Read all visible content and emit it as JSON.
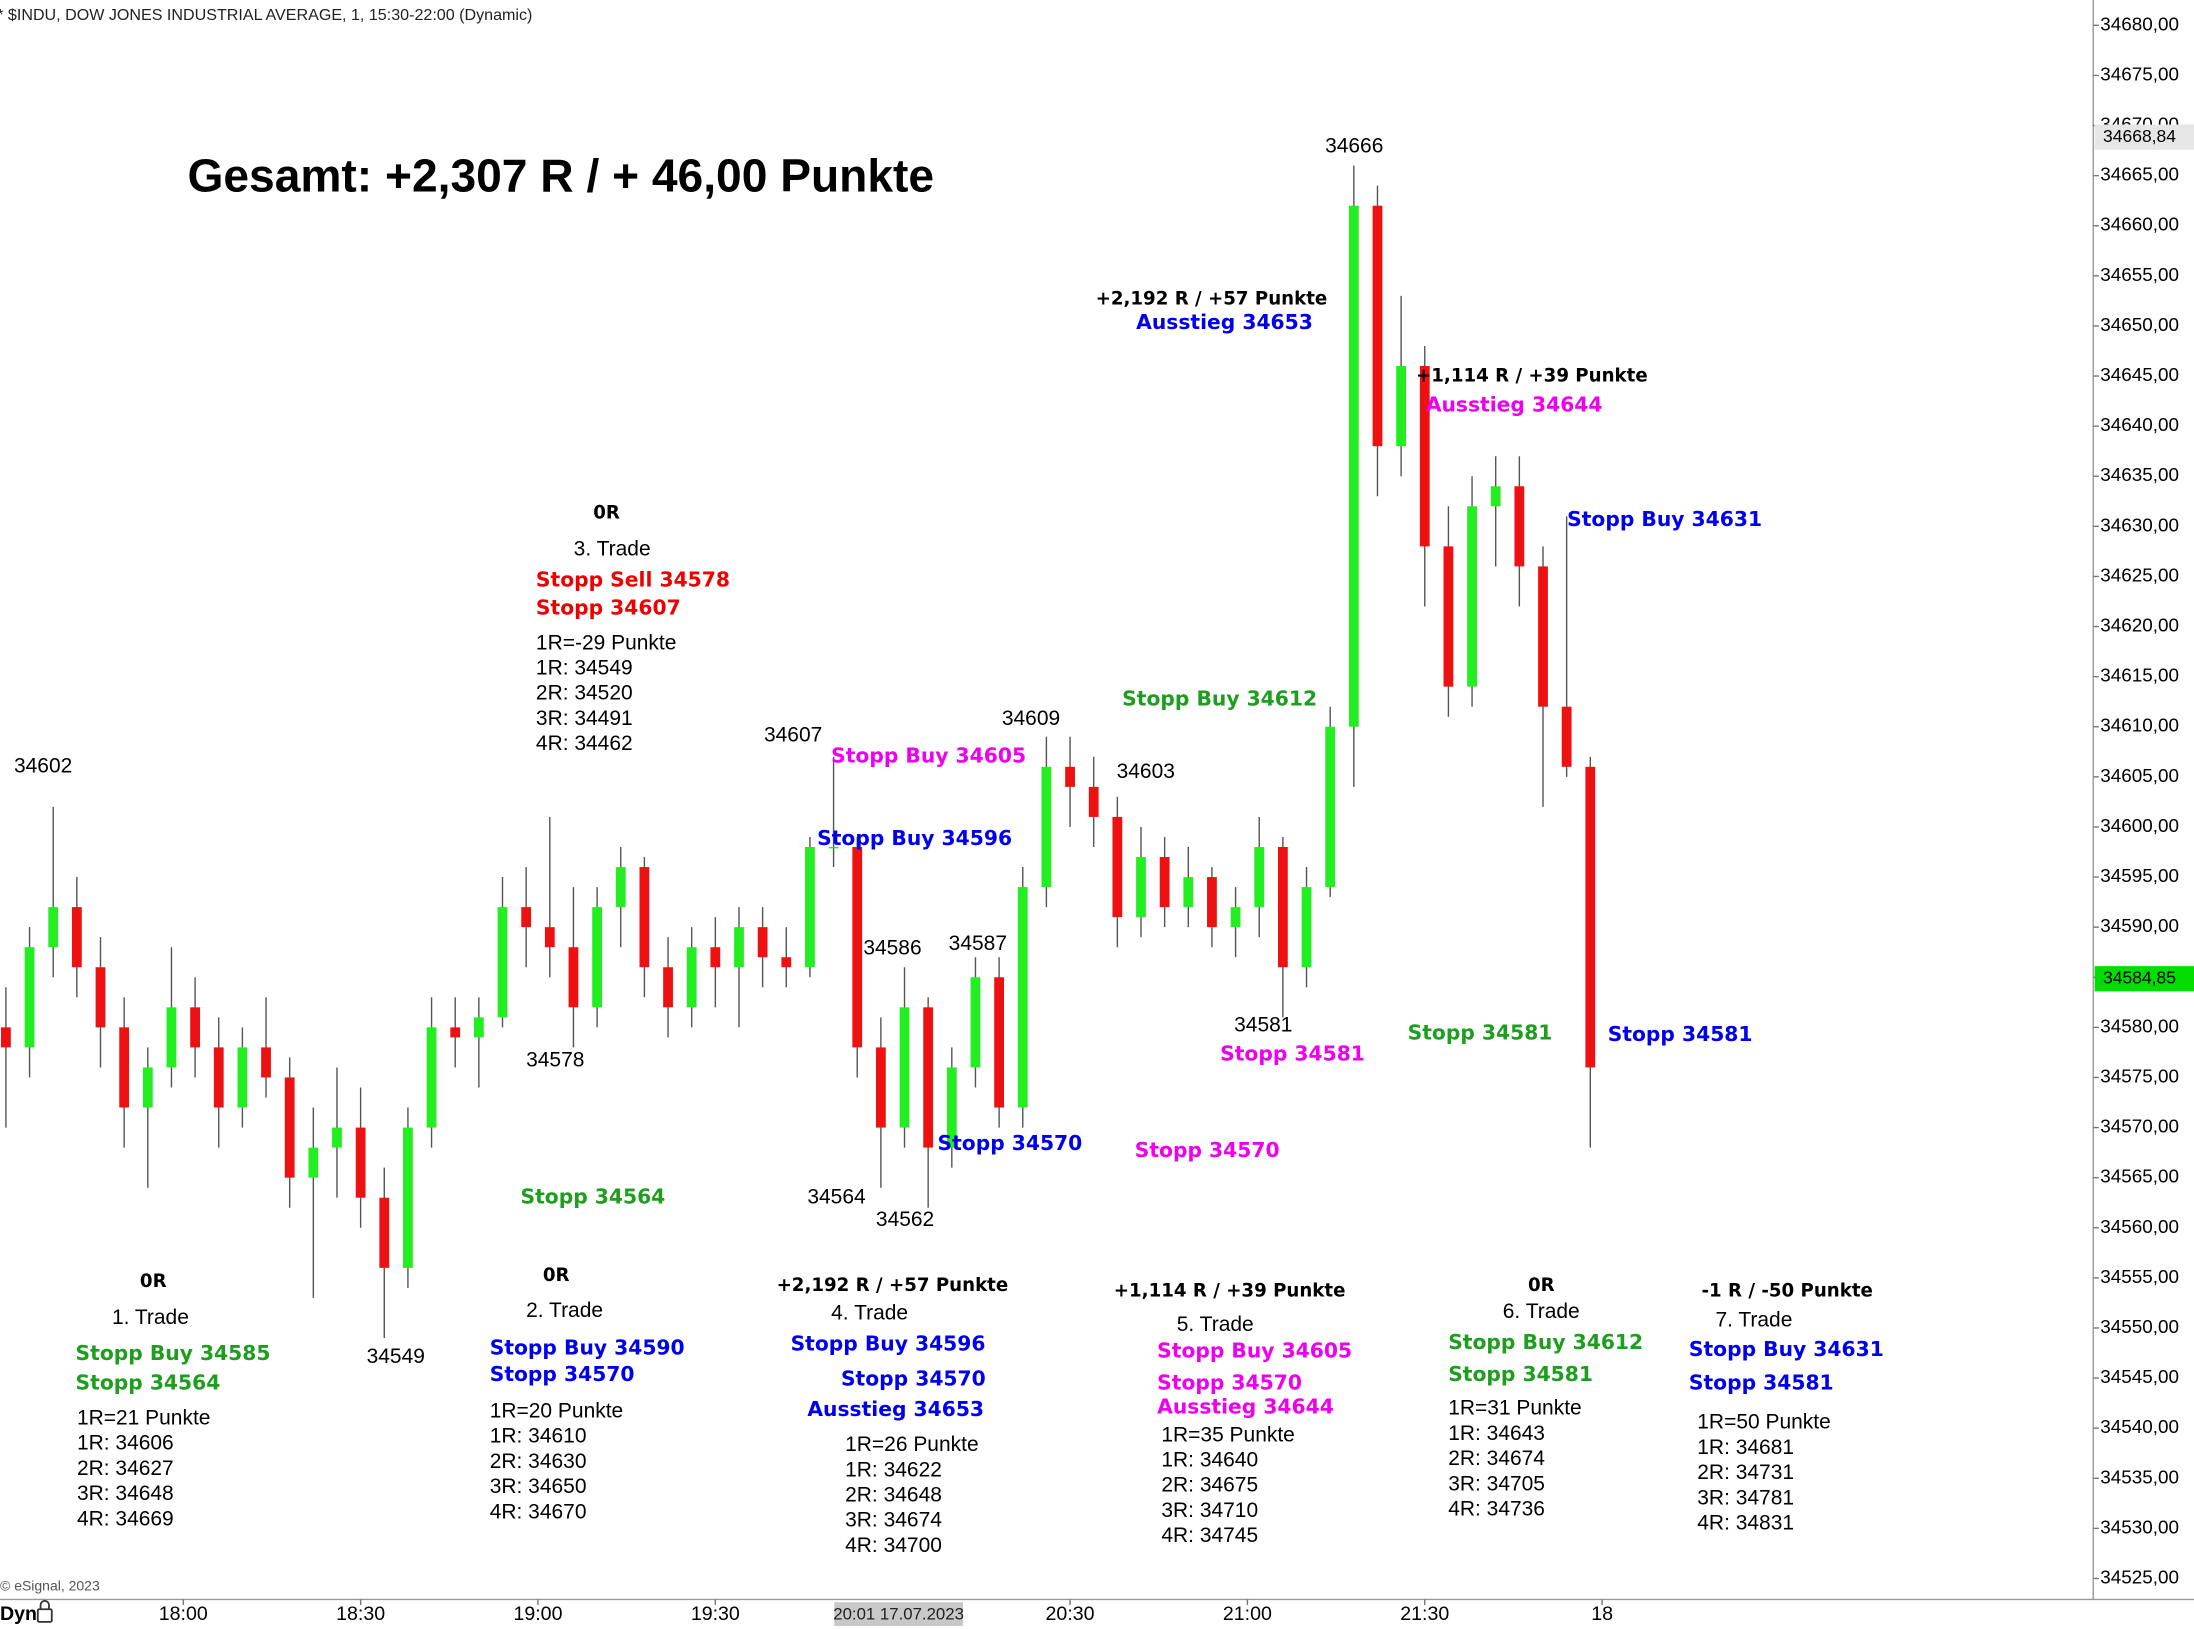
{
  "chart_data": {
    "type": "candlestick",
    "header": "* $INDU, DOW JONES INDUSTRIAL AVERAGE, 1, 15:30-22:00 (Dynamic)",
    "title": "Gesamt: +2,307 R / + 46,00 Punkte",
    "copyright": "© eSignal, 2023",
    "dyn_label": "Dyn",
    "up_color": "#22ee22",
    "down_color": "#ee1111",
    "grid": false,
    "x": [
      "17:30",
      "17:34",
      "17:38",
      "17:42",
      "17:46",
      "17:50",
      "17:54",
      "17:58",
      "18:02",
      "18:06",
      "18:10",
      "18:14",
      "18:18",
      "18:22",
      "18:26",
      "18:30",
      "18:34",
      "18:38",
      "18:42",
      "18:46",
      "18:50",
      "18:54",
      "18:58",
      "19:02",
      "19:06",
      "19:10",
      "19:14",
      "19:18",
      "19:22",
      "19:26",
      "19:30",
      "19:34",
      "19:38",
      "19:42",
      "19:46",
      "19:50",
      "19:54",
      "19:58",
      "20:02",
      "20:06",
      "20:10",
      "20:14",
      "20:18",
      "20:22",
      "20:26",
      "20:30",
      "20:34",
      "20:38",
      "20:42",
      "20:46",
      "20:50",
      "20:54",
      "20:58",
      "21:02",
      "21:06",
      "21:10",
      "21:14",
      "21:18",
      "21:22",
      "21:26",
      "21:30",
      "21:34",
      "21:38",
      "21:42",
      "21:46",
      "21:50",
      "21:54",
      "21:58"
    ],
    "open": [
      34580,
      34578,
      34588,
      34592,
      34586,
      34580,
      34572,
      34576,
      34582,
      34578,
      34572,
      34578,
      34575,
      34565,
      34568,
      34570,
      34563,
      34556,
      34570,
      34580,
      34579,
      34581,
      34592,
      34590,
      34588,
      34582,
      34592,
      34596,
      34586,
      34582,
      34588,
      34586,
      34590,
      34587,
      34586,
      34598,
      34598,
      34578,
      34570,
      34582,
      34568,
      34576,
      34585,
      34572,
      34594,
      34606,
      34604,
      34601,
      34591,
      34597,
      34592,
      34595,
      34590,
      34592,
      34598,
      34586,
      34594,
      34610,
      34662,
      34638,
      34646,
      34628,
      34614,
      34632,
      34634,
      34626,
      34612,
      34606
    ],
    "high": [
      34584,
      34590,
      34602,
      34595,
      34589,
      34583,
      34578,
      34588,
      34585,
      34581,
      34580,
      34583,
      34577,
      34572,
      34576,
      34574,
      34566,
      34572,
      34583,
      34583,
      34583,
      34595,
      34596,
      34601,
      34594,
      34594,
      34598,
      34597,
      34589,
      34590,
      34591,
      34592,
      34592,
      34590,
      34599,
      34607,
      34599,
      34581,
      34586,
      34583,
      34578,
      34587,
      34587,
      34596,
      34609,
      34609,
      34607,
      34603,
      34600,
      34599,
      34598,
      34596,
      34594,
      34601,
      34599,
      34596,
      34612,
      34666,
      34664,
      34653,
      34648,
      34632,
      34635,
      34637,
      34637,
      34628,
      34631,
      34607
    ],
    "low": [
      34570,
      34575,
      34585,
      34583,
      34576,
      34568,
      34564,
      34574,
      34575,
      34568,
      34570,
      34573,
      34562,
      34553,
      34563,
      34560,
      34549,
      34554,
      34568,
      34576,
      34574,
      34580,
      34586,
      34585,
      34578,
      34580,
      34588,
      34583,
      34579,
      34580,
      34582,
      34580,
      34584,
      34584,
      34585,
      34596,
      34575,
      34564,
      34568,
      34562,
      34566,
      34574,
      34570,
      34570,
      34592,
      34600,
      34598,
      34588,
      34589,
      34590,
      34590,
      34588,
      34587,
      34589,
      34581,
      34584,
      34593,
      34604,
      34633,
      34635,
      34622,
      34611,
      34612,
      34626,
      34622,
      34602,
      34605,
      34568
    ],
    "close": [
      34578,
      34588,
      34592,
      34586,
      34580,
      34572,
      34576,
      34582,
      34578,
      34572,
      34578,
      34575,
      34565,
      34568,
      34570,
      34563,
      34556,
      34570,
      34580,
      34579,
      34581,
      34592,
      34590,
      34588,
      34582,
      34592,
      34596,
      34586,
      34582,
      34588,
      34586,
      34590,
      34587,
      34586,
      34598,
      34598,
      34578,
      34570,
      34582,
      34568,
      34576,
      34585,
      34572,
      34594,
      34606,
      34604,
      34601,
      34591,
      34597,
      34592,
      34595,
      34590,
      34592,
      34598,
      34586,
      34594,
      34610,
      34662,
      34638,
      34646,
      34628,
      34614,
      34632,
      34634,
      34626,
      34612,
      34606,
      34576
    ],
    "xlim": [
      "17:29",
      "22:00"
    ],
    "xticks": [
      "18:00",
      "18:30",
      "19:00",
      "19:30",
      "20:30",
      "21:00",
      "21:30",
      {
        "value": "22:00",
        "label": "18"
      }
    ],
    "cursor_label": {
      "value": "20:01",
      "label": "20:01 17.07.2023"
    },
    "ylim": [
      34525,
      34680
    ],
    "yticks": [
      {
        "value": 34525,
        "label": "34525,00"
      },
      {
        "value": 34530,
        "label": "34530,00"
      },
      {
        "value": 34535,
        "label": "34535,00"
      },
      {
        "value": 34540,
        "label": "34540,00"
      },
      {
        "value": 34545,
        "label": "34545,00"
      },
      {
        "value": 34550,
        "label": "34550,00"
      },
      {
        "value": 34555,
        "label": "34555,00"
      },
      {
        "value": 34560,
        "label": "34560,00"
      },
      {
        "value": 34565,
        "label": "34565,00"
      },
      {
        "value": 34570,
        "label": "34570,00"
      },
      {
        "value": 34575,
        "label": "34575,00"
      },
      {
        "value": 34580,
        "label": "34580,00"
      },
      {
        "value": 34585,
        "label": "34585,00"
      },
      {
        "value": 34590,
        "label": "34590,00"
      },
      {
        "value": 34595,
        "label": "34595,00"
      },
      {
        "value": 34600,
        "label": "34600,00"
      },
      {
        "value": 34605,
        "label": "34605,00"
      },
      {
        "value": 34610,
        "label": "34610,00"
      },
      {
        "value": 34615,
        "label": "34615,00"
      },
      {
        "value": 34620,
        "label": "34620,00"
      },
      {
        "value": 34625,
        "label": "34625,00"
      },
      {
        "value": 34630,
        "label": "34630,00"
      },
      {
        "value": 34635,
        "label": "34635,00"
      },
      {
        "value": 34640,
        "label": "34640,00"
      },
      {
        "value": 34645,
        "label": "34645,00"
      },
      {
        "value": 34650,
        "label": "34650,00"
      },
      {
        "value": 34655,
        "label": "34655,00"
      },
      {
        "value": 34660,
        "label": "34660,00"
      },
      {
        "value": 34665,
        "label": "34665,00"
      },
      {
        "value": 34670,
        "label": "34670,00"
      },
      {
        "value": 34675,
        "label": "34675,00"
      },
      {
        "value": 34680,
        "label": "34680,00"
      }
    ],
    "price_markers": [
      {
        "value": 34668.84,
        "label": "34668,84",
        "color": "#e6e6e6"
      },
      {
        "value": 34584.85,
        "label": "34584,85",
        "color": "#00dd00"
      }
    ],
    "annotations": [
      {
        "text": "34602",
        "color": "#000000"
      },
      {
        "text": "34549",
        "color": "#000000"
      },
      {
        "text": "34578",
        "color": "#000000"
      },
      {
        "text": "34607",
        "color": "#000000"
      },
      {
        "text": "34586",
        "color": "#000000"
      },
      {
        "text": "34587",
        "color": "#000000"
      },
      {
        "text": "34564",
        "color": "#000000"
      },
      {
        "text": "34562",
        "color": "#000000"
      },
      {
        "text": "34609",
        "color": "#000000"
      },
      {
        "text": "34603",
        "color": "#000000"
      },
      {
        "text": "34581",
        "color": "#000000"
      },
      {
        "text": "34666",
        "color": "#000000"
      },
      {
        "text": "Stopp Buy 34605",
        "color": "#ee00ee"
      },
      {
        "text": "Stopp Buy 34596",
        "color": "#0000ee"
      },
      {
        "text": "Stopp 34570",
        "color": "#0000ee"
      },
      {
        "text": "Stopp 34570",
        "color": "#ee00ee"
      },
      {
        "text": "Stopp 34581",
        "color": "#ee00ee"
      },
      {
        "text": "Stopp 34564",
        "color": "#1e9e1e"
      },
      {
        "text": "Stopp Buy 34612",
        "color": "#1e9e1e"
      },
      {
        "text": "+2,192 R / +57 Punkte",
        "color": "#000000"
      },
      {
        "text": "Ausstieg 34653",
        "color": "#0000ee"
      },
      {
        "text": "+1,114 R / +39 Punkte",
        "color": "#000000"
      },
      {
        "text": "Ausstieg 34644",
        "color": "#ee00ee"
      },
      {
        "text": "Stopp Buy 34631",
        "color": "#0000ee"
      },
      {
        "text": "Stopp 34581",
        "color": "#1e9e1e"
      },
      {
        "text": "Stopp 34581",
        "color": "#0000ee"
      },
      {
        "text": "0R",
        "color": "#000000"
      },
      {
        "text": "1. Trade",
        "color": "#000000"
      },
      {
        "text": "Stopp Buy 34585",
        "color": "#1e9e1e"
      },
      {
        "text": "Stopp 34564",
        "color": "#1e9e1e"
      },
      {
        "text": "1R=21 Punkte",
        "color": "#000000"
      },
      {
        "text": "1R: 34606",
        "color": "#000000"
      },
      {
        "text": "2R: 34627",
        "color": "#000000"
      },
      {
        "text": "3R: 34648",
        "color": "#000000"
      },
      {
        "text": "4R: 34669",
        "color": "#000000"
      },
      {
        "text": "0R",
        "color": "#000000"
      },
      {
        "text": "2. Trade",
        "color": "#000000"
      },
      {
        "text": "Stopp Buy 34590",
        "color": "#0000ee"
      },
      {
        "text": "Stopp 34570",
        "color": "#0000ee"
      },
      {
        "text": "1R=20 Punkte",
        "color": "#000000"
      },
      {
        "text": "1R: 34610",
        "color": "#000000"
      },
      {
        "text": "2R: 34630",
        "color": "#000000"
      },
      {
        "text": "3R: 34650",
        "color": "#000000"
      },
      {
        "text": "4R: 34670",
        "color": "#000000"
      },
      {
        "text": "0R",
        "color": "#000000"
      },
      {
        "text": "3. Trade",
        "color": "#000000"
      },
      {
        "text": "Stopp Sell 34578",
        "color": "#ee0000"
      },
      {
        "text": "Stopp 34607",
        "color": "#ee0000"
      },
      {
        "text": "1R=-29 Punkte",
        "color": "#000000"
      },
      {
        "text": "1R: 34549",
        "color": "#000000"
      },
      {
        "text": "2R: 34520",
        "color": "#000000"
      },
      {
        "text": "3R: 34491",
        "color": "#000000"
      },
      {
        "text": "4R: 34462",
        "color": "#000000"
      },
      {
        "text": "+2,192 R / +57 Punkte",
        "color": "#000000"
      },
      {
        "text": "4. Trade",
        "color": "#000000"
      },
      {
        "text": "Stopp Buy 34596",
        "color": "#0000ee"
      },
      {
        "text": "Stopp 34570",
        "color": "#0000ee"
      },
      {
        "text": "Ausstieg 34653",
        "color": "#0000ee"
      },
      {
        "text": "1R=26 Punkte",
        "color": "#000000"
      },
      {
        "text": "1R: 34622",
        "color": "#000000"
      },
      {
        "text": "2R: 34648",
        "color": "#000000"
      },
      {
        "text": "3R: 34674",
        "color": "#000000"
      },
      {
        "text": "4R: 34700",
        "color": "#000000"
      },
      {
        "text": "+1,114 R / +39 Punkte",
        "color": "#000000"
      },
      {
        "text": "5. Trade",
        "color": "#000000"
      },
      {
        "text": "Stopp Buy 34605",
        "color": "#ee00ee"
      },
      {
        "text": "Stopp 34570",
        "color": "#ee00ee"
      },
      {
        "text": "Ausstieg 34644",
        "color": "#ee00ee"
      },
      {
        "text": "1R=35 Punkte",
        "color": "#000000"
      },
      {
        "text": "1R: 34640",
        "color": "#000000"
      },
      {
        "text": "2R: 34675",
        "color": "#000000"
      },
      {
        "text": "3R: 34710",
        "color": "#000000"
      },
      {
        "text": "4R: 34745",
        "color": "#000000"
      },
      {
        "text": "0R",
        "color": "#000000"
      },
      {
        "text": "6. Trade",
        "color": "#000000"
      },
      {
        "text": "Stopp Buy 34612",
        "color": "#1e9e1e"
      },
      {
        "text": "Stopp 34581",
        "color": "#1e9e1e"
      },
      {
        "text": "1R=31 Punkte",
        "color": "#000000"
      },
      {
        "text": "1R: 34643",
        "color": "#000000"
      },
      {
        "text": "2R: 34674",
        "color": "#000000"
      },
      {
        "text": "3R: 34705",
        "color": "#000000"
      },
      {
        "text": "4R: 34736",
        "color": "#000000"
      },
      {
        "text": "-1 R / -50 Punkte",
        "color": "#000000"
      },
      {
        "text": "7. Trade",
        "color": "#000000"
      },
      {
        "text": "Stopp Buy 34631",
        "color": "#0000ee"
      },
      {
        "text": "Stopp 34581",
        "color": "#0000ee"
      },
      {
        "text": "1R=50 Punkte",
        "color": "#000000"
      },
      {
        "text": "1R: 34681",
        "color": "#000000"
      },
      {
        "text": "2R: 34731",
        "color": "#000000"
      },
      {
        "text": "3R: 34781",
        "color": "#000000"
      },
      {
        "text": "4R: 34831",
        "color": "#000000"
      }
    ]
  }
}
